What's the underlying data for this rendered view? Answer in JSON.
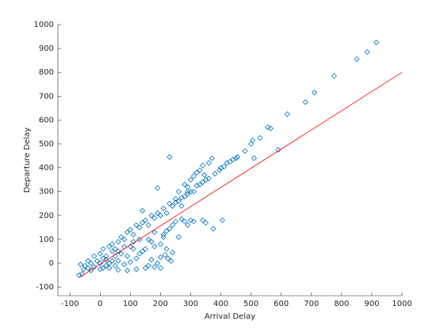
{
  "chart_data": {
    "type": "scatter",
    "xlabel": "Arrival Delay",
    "ylabel": "Departure Delay",
    "xlim": [
      -140,
      1000
    ],
    "ylim": [
      -136,
      1000
    ],
    "xticks": [
      -100,
      0,
      100,
      200,
      300,
      400,
      500,
      600,
      700,
      800,
      900,
      1000
    ],
    "yticks": [
      -100,
      0,
      100,
      200,
      300,
      400,
      500,
      600,
      700,
      800,
      900,
      1000
    ],
    "series": [
      {
        "color": "#0072bd",
        "x": [
          915,
          885,
          850,
          775,
          710,
          680,
          620,
          590,
          565,
          555,
          530,
          500,
          505,
          510,
          480,
          455,
          450,
          440,
          430,
          420,
          410,
          400,
          395,
          380,
          360,
          350,
          340,
          330,
          320,
          310,
          300,
          290,
          280,
          270,
          260,
          250,
          240,
          230,
          190,
          140,
          405,
          375,
          340,
          310,
          290,
          270,
          250,
          240,
          230,
          260,
          280,
          300,
          350,
          220,
          210,
          240,
          215,
          200,
          190,
          170,
          235,
          225,
          160,
          150,
          180,
          200,
          210,
          180,
          170,
          140,
          130,
          120,
          110,
          100,
          90,
          80,
          70,
          60,
          50,
          40,
          30,
          20,
          10,
          0,
          -10,
          -20,
          -30,
          -40,
          -50,
          -60,
          -70,
          -65,
          -55,
          0,
          10,
          20,
          30,
          40,
          50,
          60,
          70,
          80,
          90,
          100,
          110,
          120,
          130,
          140,
          150,
          160,
          170,
          180,
          190,
          200,
          210,
          220,
          230,
          250,
          260,
          270,
          280,
          290,
          300,
          310,
          320,
          330,
          340,
          360,
          370,
          345,
          290,
          150,
          120,
          90,
          60,
          30,
          200,
          180,
          220,
          160,
          130,
          110,
          100,
          80,
          60,
          50,
          40,
          20,
          10,
          -20,
          -40,
          0,
          -30
        ],
        "y": [
          925,
          885,
          855,
          785,
          715,
          675,
          625,
          475,
          565,
          570,
          525,
          500,
          515,
          440,
          470,
          445,
          440,
          435,
          425,
          420,
          405,
          400,
          390,
          375,
          355,
          350,
          340,
          330,
          325,
          300,
          300,
          290,
          280,
          275,
          260,
          255,
          240,
          445,
          315,
          220,
          180,
          145,
          180,
          175,
          160,
          185,
          175,
          160,
          145,
          110,
          175,
          180,
          170,
          135,
          110,
          45,
          35,
          25,
          0,
          15,
          10,
          20,
          -10,
          60,
          70,
          80,
          120,
          130,
          90,
          50,
          40,
          20,
          60,
          5,
          30,
          -5,
          40,
          10,
          -10,
          50,
          0,
          30,
          -20,
          0,
          10,
          -15,
          0,
          -20,
          -10,
          -45,
          -50,
          -5,
          -25,
          40,
          60,
          15,
          70,
          80,
          60,
          90,
          110,
          100,
          130,
          140,
          120,
          160,
          150,
          170,
          180,
          160,
          200,
          190,
          210,
          200,
          230,
          210,
          250,
          270,
          300,
          240,
          330,
          320,
          350,
          365,
          380,
          390,
          410,
          420,
          440,
          370,
          300,
          -20,
          -25,
          -30,
          -28,
          -20,
          -20,
          -15,
          60,
          100,
          100,
          90,
          70,
          70,
          50,
          30,
          10,
          -10,
          20,
          30,
          10,
          -25,
          -30
        ]
      }
    ],
    "fit": {
      "color": "#ff0000",
      "x": [
        -70,
        1000
      ],
      "y": [
        -60,
        800
      ]
    }
  }
}
